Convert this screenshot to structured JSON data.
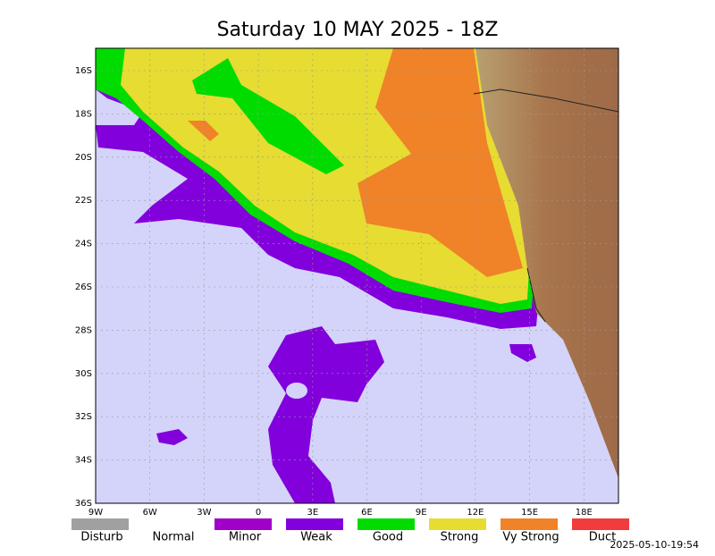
{
  "title": "Saturday 10 MAY 2025 - 18Z",
  "x_labels": [
    "9W",
    "6W",
    "3W",
    "0",
    "3E",
    "6E",
    "9E",
    "12E",
    "15E",
    "18E"
  ],
  "y_labels": [
    "16S",
    "18S",
    "20S",
    "22S",
    "24S",
    "26S",
    "28S",
    "30S",
    "32S",
    "34S",
    "36S"
  ],
  "legend": [
    {
      "label": "Disturb",
      "color": "#a0a0a0"
    },
    {
      "label": "Normal",
      "color": null
    },
    {
      "label": "Minor",
      "color": "#a000c8"
    },
    {
      "label": "Weak",
      "color": "#8200dc"
    },
    {
      "label": "Good",
      "color": "#00dc00"
    },
    {
      "label": "Strong",
      "color": "#e6dc32"
    },
    {
      "label": "Vy Strong",
      "color": "#f08228"
    },
    {
      "label": "Duct",
      "color": "#f03c3c"
    }
  ],
  "timestamp": "2025-05-10-19:54"
}
